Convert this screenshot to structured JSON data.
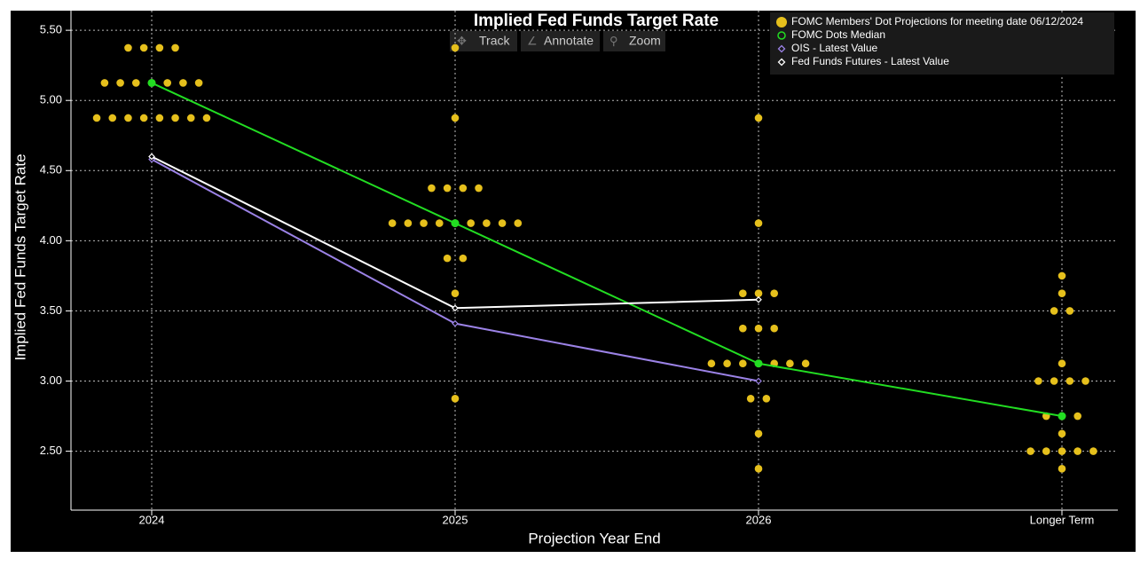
{
  "chart_data": {
    "type": "dot-plot",
    "title": "Implied Fed Funds Target Rate",
    "y_label": "Implied Fed Funds Target Rate",
    "x_label": "Projection Year End",
    "categories": [
      "2024",
      "2025",
      "2026",
      "Longer Term"
    ],
    "ylim": [
      2.08,
      5.64
    ],
    "yticks": [
      {
        "value": 2.5,
        "label": "2.50"
      },
      {
        "value": 3,
        "label": "3.00"
      },
      {
        "value": 3.5,
        "label": "3.50"
      },
      {
        "value": 4,
        "label": "4.00"
      },
      {
        "value": 4.5,
        "label": "4.50"
      },
      {
        "value": 5,
        "label": "5.00"
      },
      {
        "value": 5.5,
        "label": "5.50"
      }
    ],
    "grid": true,
    "legend": "top-right",
    "series": [
      {
        "name": "FOMC Members' Dot Projections for meeting date 06/12/2024",
        "color": "#e6c01c",
        "marker": "dots",
        "values": [
          [
            5.375,
            5.125,
            4.875
          ],
          [
            5.375,
            4.875,
            4.375,
            4.125,
            3.875,
            3.625,
            2.875
          ],
          [
            4.875,
            4.125,
            3.625,
            3.375,
            3.125,
            2.875,
            2.625,
            2.375
          ],
          [
            3.75,
            3.625,
            3.5,
            3.125,
            3.0,
            2.75,
            2.625,
            2.5,
            2.375
          ]
        ],
        "counts": [
          [
            4,
            7,
            8
          ],
          [
            1,
            1,
            4,
            9,
            2,
            1,
            1
          ],
          [
            1,
            1,
            3,
            3,
            7,
            2,
            1,
            1
          ],
          [
            1,
            1,
            2,
            1,
            4,
            3,
            1,
            5,
            1
          ]
        ]
      },
      {
        "name": "FOMC Dots Median",
        "color": "#22dd22",
        "marker": "circle",
        "values": [
          5.125,
          4.125,
          3.125,
          2.75
        ]
      },
      {
        "name": "OIS - Latest Value",
        "color": "#9b82e6",
        "marker": "diamond",
        "values": [
          4.58,
          3.41,
          3.0,
          null
        ]
      },
      {
        "name": "Fed Funds Futures - Latest Value",
        "color": "#ffffff",
        "marker": "diamond",
        "values": [
          4.6,
          3.52,
          3.58,
          null
        ]
      }
    ]
  },
  "toolbar": [
    "Track",
    "Annotate",
    "Zoom"
  ]
}
